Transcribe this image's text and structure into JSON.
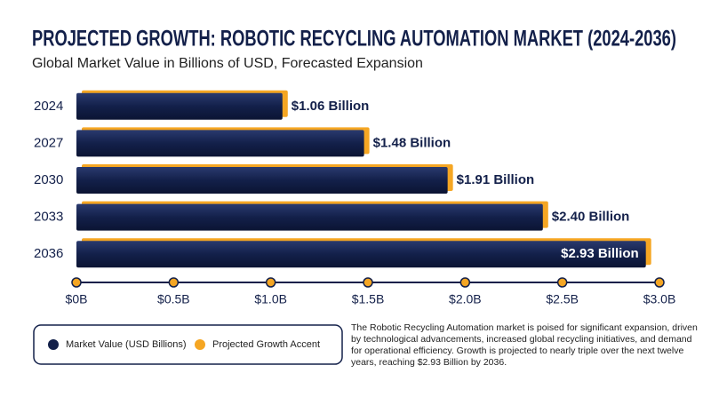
{
  "chart_data": {
    "type": "bar",
    "title": "PROJECTED GROWTH: ROBOTIC RECYCLING AUTOMATION MARKET (2024-2036)",
    "subtitle": "Global Market Value in Billions of USD, Forecasted Expansion",
    "categories": [
      "2024",
      "2027",
      "2030",
      "2033",
      "2036"
    ],
    "series": [
      {
        "name": "Market Value (USD Billions)",
        "color": "#13204a",
        "values": [
          1.06,
          1.48,
          1.91,
          2.4,
          2.93
        ],
        "value_labels": [
          "$1.06 Billion",
          "$1.48 Billion",
          "$1.91 Billion",
          "$2.40 Billion",
          "$2.93 Billion"
        ]
      }
    ],
    "accent": {
      "name": "Projected Growth Accent",
      "color": "#f5a623"
    },
    "xlim": [
      0,
      3
    ],
    "xticks": [
      {
        "value": 0,
        "label": "$0B"
      },
      {
        "value": 0.5,
        "label": "$0.5B"
      },
      {
        "value": 1,
        "label": "$1.0B"
      },
      {
        "value": 1.5,
        "label": "$1.5B"
      },
      {
        "value": 2,
        "label": "$2.0B"
      },
      {
        "value": 2.5,
        "label": "$2.5B"
      },
      {
        "value": 3,
        "label": "$3.0B"
      }
    ],
    "description": "The Robotic Recycling Automation market is poised for significant expansion, driven by technological advancements, increased global recycling initiatives, and demand for operational efficiency. Growth is projected to nearly triple over the next twelve years, reaching $2.93 Billion by 2036."
  }
}
